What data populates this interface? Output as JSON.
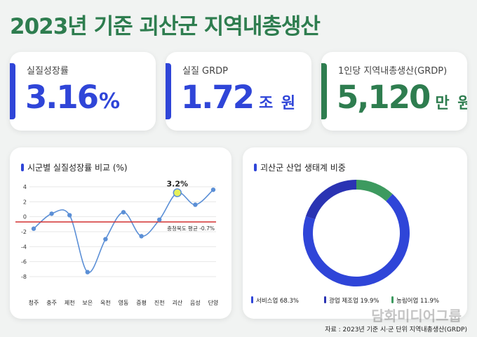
{
  "title": "2023년 기준 괴산군 지역내총생산",
  "cards": [
    {
      "label": "실질성장률",
      "value": "3.16",
      "unit": "%",
      "color": "#2f45d8"
    },
    {
      "label": "실질 GRDP",
      "value": "1.72",
      "unit": "조 원",
      "color": "#2f45d8"
    },
    {
      "label": "1인당 지역내총생산(GRDP)",
      "value": "5,120",
      "unit": "만 원",
      "color": "#2e7d4f"
    }
  ],
  "colors": {
    "blue": "#2f45d8",
    "green": "#2e7d4f",
    "line": "#5b8fd6",
    "avg_line": "#d33030",
    "highlight": "#e6f05a"
  },
  "chart_data": [
    {
      "type": "line",
      "title": "시군별 실질성장률 비교 (%)",
      "categories": [
        "청주",
        "충주",
        "제천",
        "보은",
        "옥천",
        "영동",
        "증평",
        "진천",
        "괴산",
        "음성",
        "단양"
      ],
      "series": [
        {
          "values": [
            -1.6,
            0.4,
            0.2,
            -7.4,
            -3.0,
            0.6,
            -2.6,
            -0.4,
            3.2,
            1.6,
            3.6
          ]
        }
      ],
      "ylim": [
        -8,
        4
      ],
      "yticks": [
        "4",
        "2",
        "0",
        "-2",
        "-4",
        "-6",
        "-8"
      ],
      "reference_line": {
        "value": -0.7,
        "label": "충청북도 평균 -0.7%"
      },
      "highlight": {
        "category": "괴산",
        "label": "3.2%"
      },
      "grid": true
    },
    {
      "type": "pie",
      "title": "괴산군 산업 생태계 비중",
      "slices": [
        {
          "label": "서비스업 68.3%",
          "value": 68.3,
          "color": "#2f45d8"
        },
        {
          "label": "광업 제조업 19.9%",
          "value": 19.9,
          "color": "#2a33b3"
        },
        {
          "label": "농림어업 11.9%",
          "value": 11.9,
          "color": "#3d9a5f"
        }
      ]
    }
  ],
  "watermark": "담화미디어그룹",
  "source": "자료 : 2023년 기준 시·군 단위 지역내총생산(GRDP)"
}
